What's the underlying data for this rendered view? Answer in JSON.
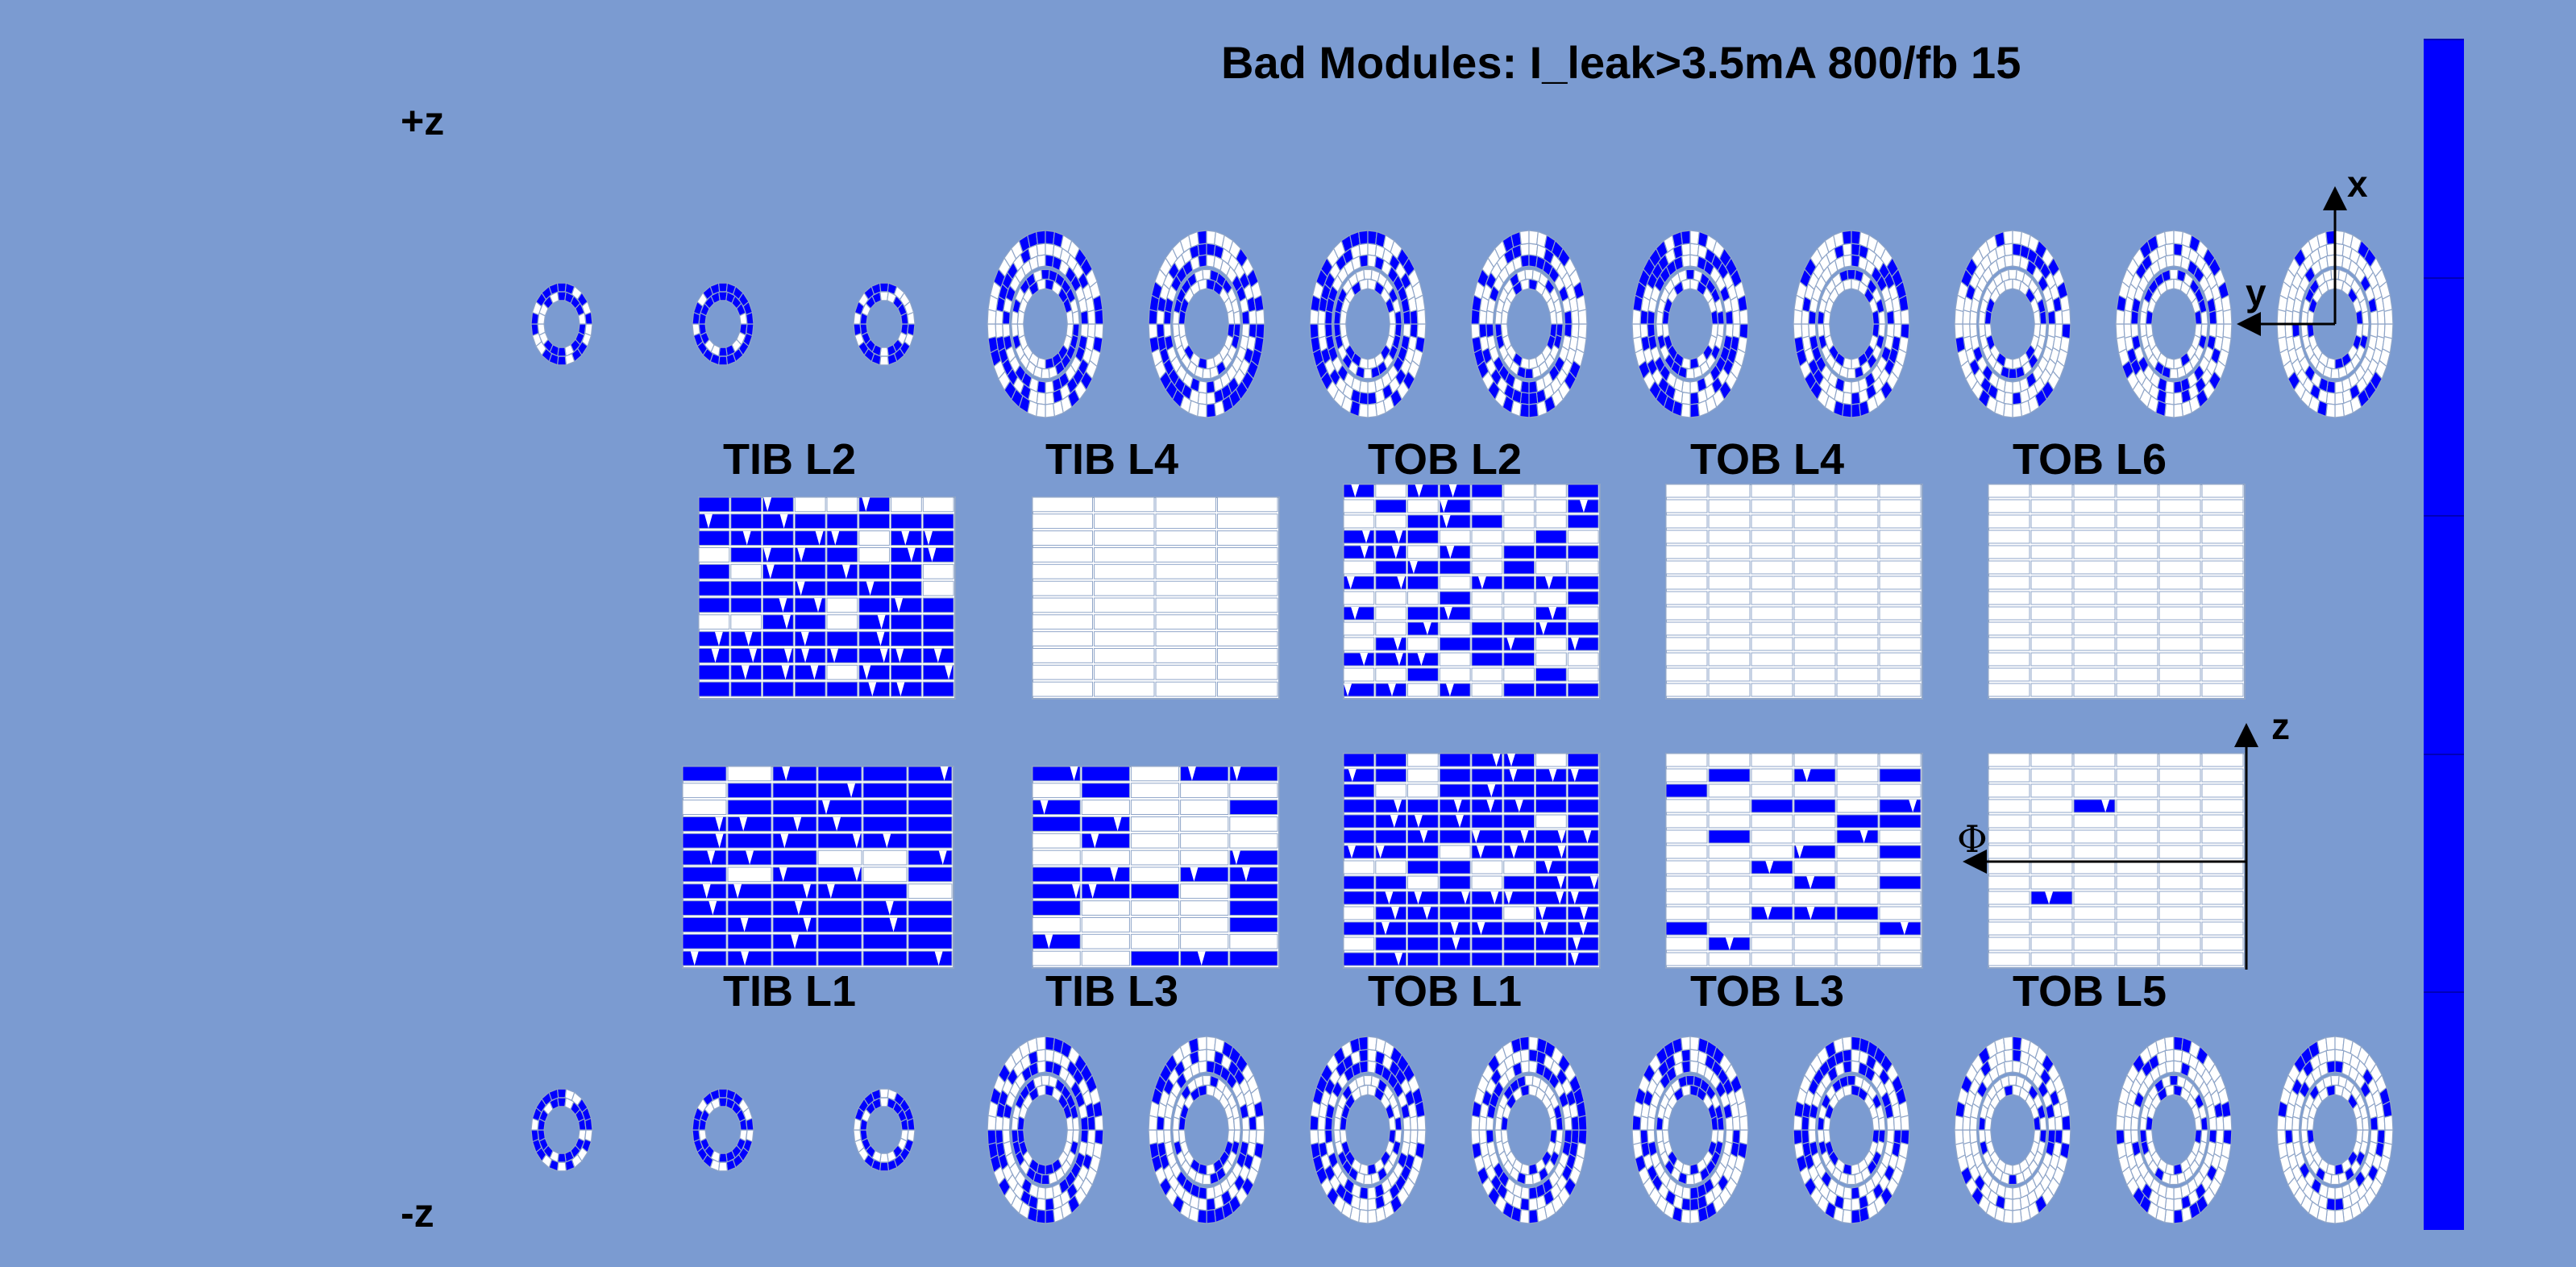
{
  "title": "Bad Modules: I_leak>3.5mA 800/fb 15",
  "z_plus_label": "+z",
  "z_minus_label": "-z",
  "colors": {
    "background": "#7b9bd1",
    "bad_module": "#0000ff",
    "good_module": "#ffffff",
    "module_outline": "#8fa5c8",
    "colorbar": "#0000ff"
  },
  "top_panels": [
    {
      "label": "TIB L2"
    },
    {
      "label": "TIB L4"
    },
    {
      "label": "TOB L2"
    },
    {
      "label": "TOB L4"
    },
    {
      "label": "TOB L6"
    }
  ],
  "bottom_panels": [
    {
      "label": "TIB L1"
    },
    {
      "label": "TIB L3"
    },
    {
      "label": "TOB L1"
    },
    {
      "label": "TOB L3"
    },
    {
      "label": "TOB L5"
    }
  ],
  "xy_axes": {
    "x_label": "x",
    "y_label": "y"
  },
  "zphi_axes": {
    "z_label": "z",
    "phi_label": "Φ"
  },
  "disk_rows": [
    {
      "side": "+z",
      "count": 12
    },
    {
      "side": "-z",
      "count": 12
    }
  ],
  "colorbar": {
    "segments": 5
  }
}
